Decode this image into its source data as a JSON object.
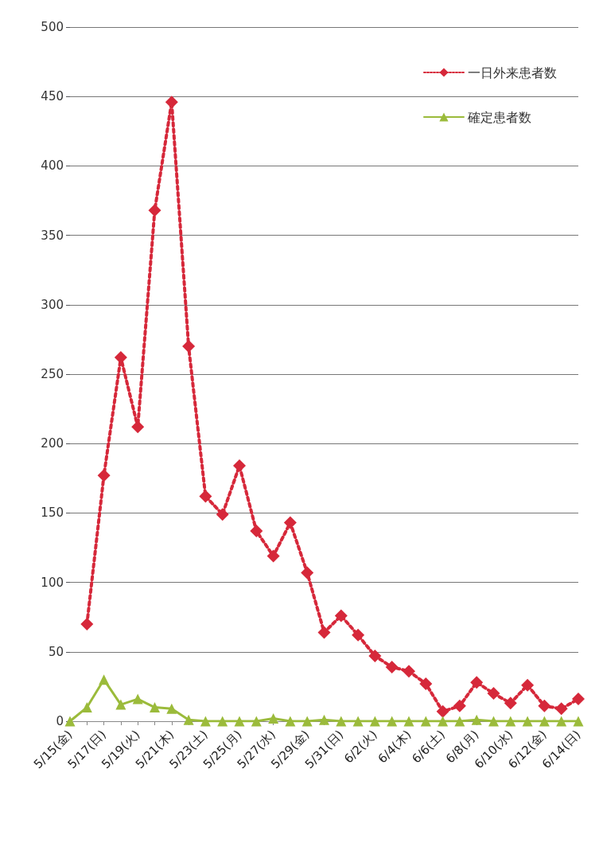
{
  "chart_data": {
    "type": "line",
    "categories": [
      "5/15(金)",
      null,
      "5/17(日)",
      null,
      "5/19(火)",
      null,
      "5/21(木)",
      null,
      "5/23(土)",
      null,
      "5/25(月)",
      null,
      "5/27(水)",
      null,
      "5/29(金)",
      null,
      "5/31(日)",
      null,
      "6/2(火)",
      null,
      "6/4(木)",
      null,
      "6/6(土)",
      null,
      "6/8(月)",
      null,
      "6/10(水)",
      null,
      "6/12(金)",
      null,
      "6/14(日)"
    ],
    "series": [
      {
        "name": "一日外来患者数",
        "color": "#d6283a",
        "marker": "diamond",
        "line_style": "dotted",
        "values": [
          null,
          70,
          177,
          262,
          212,
          368,
          446,
          270,
          162,
          149,
          184,
          137,
          119,
          143,
          107,
          64,
          76,
          62,
          47,
          39,
          36,
          27,
          7,
          11,
          28,
          20,
          13,
          26,
          11,
          9,
          16
        ]
      },
      {
        "name": "確定患者数",
        "color": "#9bbb3b",
        "marker": "triangle",
        "line_style": "solid",
        "values": [
          0,
          10,
          30,
          12,
          16,
          10,
          9,
          1,
          0,
          0,
          0,
          0,
          2,
          0,
          0,
          1,
          0,
          0,
          0,
          0,
          0,
          0,
          0,
          0,
          1,
          0,
          0,
          0,
          0,
          0,
          0
        ]
      }
    ],
    "ylim": [
      0,
      500
    ],
    "yticks": [
      0,
      50,
      100,
      150,
      200,
      250,
      300,
      350,
      400,
      450,
      500
    ],
    "grid": "y",
    "legend": "top right"
  }
}
